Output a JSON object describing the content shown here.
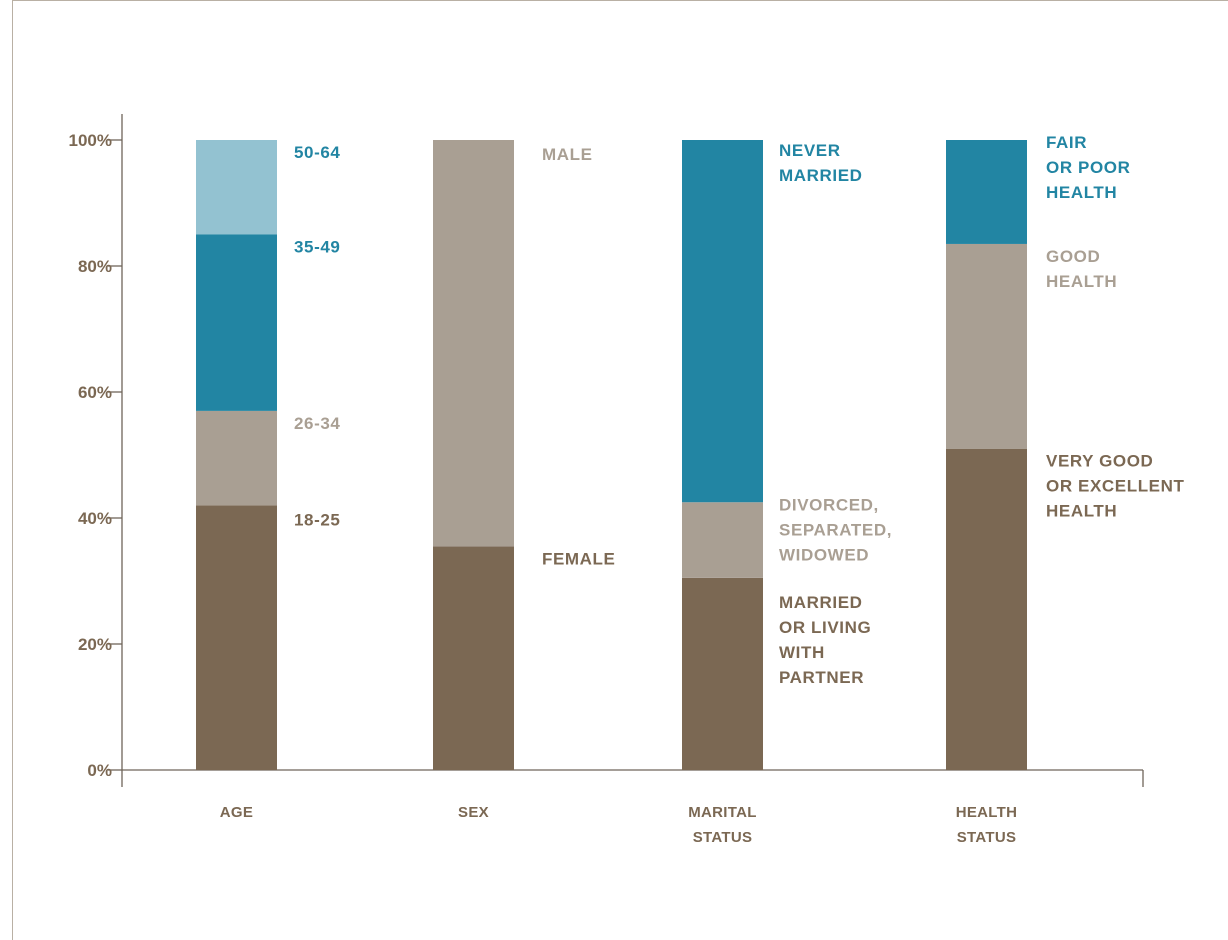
{
  "chart_data": {
    "type": "bar",
    "stacked": true,
    "ylim": [
      0,
      100
    ],
    "y_ticks": [
      "0%",
      "20%",
      "40%",
      "60%",
      "80%",
      "100%"
    ],
    "grid": false,
    "legend": "inline labels beside bars",
    "colors": {
      "dark_brown": "#7b6853",
      "light_taupe": "#a99f93",
      "teal": "#2285a3",
      "light_blue": "#93c2d1",
      "axis": "#6f655a"
    },
    "categories": [
      {
        "label_lines": [
          "AGE"
        ],
        "segments": [
          {
            "name_lines": [
              "18-25"
            ],
            "value": 42,
            "color": "#7b6853"
          },
          {
            "name_lines": [
              "26-34"
            ],
            "value": 15,
            "color": "#a99f93"
          },
          {
            "name_lines": [
              "35-49"
            ],
            "value": 28,
            "color": "#2285a3"
          },
          {
            "name_lines": [
              "50-64"
            ],
            "value": 15,
            "color": "#93c2d1"
          }
        ]
      },
      {
        "label_lines": [
          "SEX"
        ],
        "segments": [
          {
            "name_lines": [
              "FEMALE"
            ],
            "value": 35.5,
            "color": "#7b6853"
          },
          {
            "name_lines": [
              "MALE"
            ],
            "value": 64.5,
            "color": "#a99f93"
          }
        ]
      },
      {
        "label_lines": [
          "MARITAL",
          "STATUS"
        ],
        "segments": [
          {
            "name_lines": [
              "MARRIED",
              "OR LIVING",
              "WITH",
              "PARTNER"
            ],
            "value": 30.5,
            "color": "#7b6853"
          },
          {
            "name_lines": [
              "DIVORCED,",
              "SEPARATED,",
              "WIDOWED"
            ],
            "value": 12,
            "color": "#a99f93"
          },
          {
            "name_lines": [
              "NEVER",
              "MARRIED"
            ],
            "value": 57.5,
            "color": "#2285a3"
          }
        ]
      },
      {
        "label_lines": [
          "HEALTH",
          "STATUS"
        ],
        "segments": [
          {
            "name_lines": [
              "VERY GOOD",
              "OR EXCELLENT",
              "HEALTH"
            ],
            "value": 51,
            "color": "#7b6853"
          },
          {
            "name_lines": [
              "GOOD",
              "HEALTH"
            ],
            "value": 32.5,
            "color": "#a99f93"
          },
          {
            "name_lines": [
              "FAIR",
              "OR POOR",
              "HEALTH"
            ],
            "value": 16.5,
            "color": "#2285a3"
          }
        ]
      }
    ]
  }
}
